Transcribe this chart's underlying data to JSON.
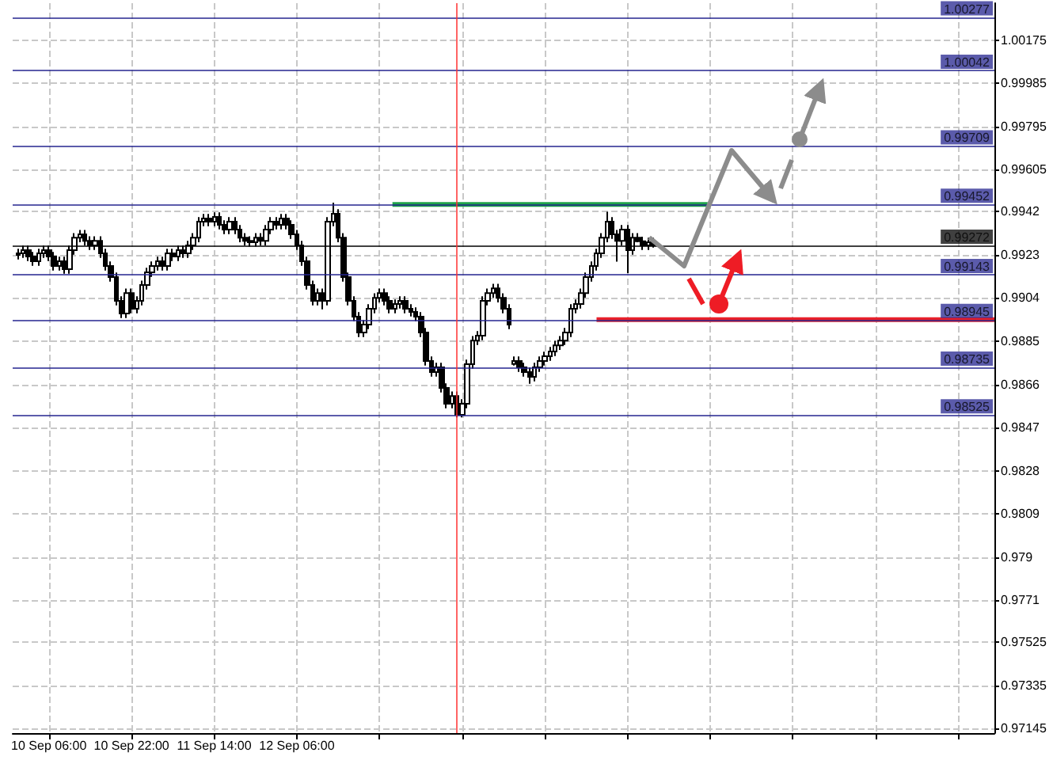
{
  "chart_data": {
    "type": "candlestick",
    "grid": true,
    "xlim": [
      "--09-09T23:00",
      "--09-17T21:00"
    ],
    "xticks": [
      {
        "value": "--09-10T06:00",
        "label": "10 Sep 06:00"
      },
      {
        "value": "--09-10T22:00",
        "label": "10 Sep 22:00"
      },
      {
        "value": "--09-11T14:00",
        "label": "11 Sep 14:00"
      },
      {
        "value": "--09-12T06:00",
        "label": "12 Sep 06:00"
      },
      {
        "value": "--09-12T22:00",
        "label": null
      },
      {
        "value": "--09-13T14:00",
        "label": null
      },
      {
        "value": "--09-14T06:00",
        "label": null
      },
      {
        "value": "--09-14T22:00",
        "label": null
      },
      {
        "value": "--09-15T14:00",
        "label": null
      },
      {
        "value": "--09-16T06:00",
        "label": null
      },
      {
        "value": "--09-16T22:00",
        "label": null
      },
      {
        "value": "--09-17T14:00",
        "label": null
      }
    ],
    "ylim": [
      0.97125,
      1.00338
    ],
    "yticks": [
      0.97145,
      0.97335,
      0.97525,
      0.9771,
      0.979,
      0.9809,
      0.9828,
      0.9847,
      0.9866,
      0.9885,
      0.9904,
      0.9923,
      0.9942,
      0.99605,
      0.99795,
      0.99985,
      1.00175
    ],
    "series": [
      {
        "color": "#000000",
        "x": [
          "--09-10T00:00",
          "--09-10T01:00",
          "--09-10T02:00",
          "--09-10T03:00",
          "--09-10T04:00",
          "--09-10T05:00",
          "--09-10T06:00",
          "--09-10T07:00",
          "--09-10T08:00",
          "--09-10T09:00",
          "--09-10T10:00",
          "--09-10T11:00",
          "--09-10T12:00",
          "--09-10T13:00",
          "--09-10T14:00",
          "--09-10T15:00",
          "--09-10T16:00",
          "--09-10T17:00",
          "--09-10T18:00",
          "--09-10T19:00",
          "--09-10T20:00",
          "--09-10T21:00",
          "--09-10T22:00",
          "--09-10T23:00",
          "--09-11T00:00",
          "--09-11T01:00",
          "--09-11T02:00",
          "--09-11T03:00",
          "--09-11T04:00",
          "--09-11T05:00",
          "--09-11T06:00",
          "--09-11T07:00",
          "--09-11T08:00",
          "--09-11T09:00",
          "--09-11T10:00",
          "--09-11T11:00",
          "--09-11T12:00",
          "--09-11T13:00",
          "--09-11T14:00",
          "--09-11T15:00",
          "--09-11T16:00",
          "--09-11T17:00",
          "--09-11T18:00",
          "--09-11T19:00",
          "--09-11T20:00",
          "--09-11T21:00",
          "--09-11T22:00",
          "--09-11T23:00",
          "--09-12T00:00",
          "--09-12T01:00",
          "--09-12T02:00",
          "--09-12T03:00",
          "--09-12T04:00",
          "--09-12T05:00",
          "--09-12T06:00",
          "--09-12T07:00",
          "--09-12T08:00",
          "--09-12T09:00",
          "--09-12T10:00",
          "--09-12T11:00",
          "--09-12T12:00",
          "--09-12T13:00",
          "--09-12T14:00",
          "--09-12T15:00",
          "--09-12T16:00",
          "--09-12T17:00",
          "--09-12T18:00",
          "--09-12T19:00",
          "--09-12T20:00",
          "--09-12T21:00",
          "--09-12T22:00",
          "--09-12T23:00",
          "--09-13T00:00",
          "--09-13T01:00",
          "--09-13T02:00",
          "--09-13T03:00",
          "--09-13T04:00",
          "--09-13T05:00",
          "--09-13T06:00",
          "--09-13T07:00",
          "--09-13T08:00",
          "--09-13T09:00",
          "--09-13T10:00",
          "--09-13T11:00",
          "--09-13T12:00",
          "--09-13T13:00",
          "--09-13T14:00",
          "--09-13T15:00",
          "--09-13T16:00",
          "--09-13T17:00",
          "--09-13T18:00",
          "--09-13T19:00",
          "--09-13T20:00",
          "--09-13T21:00",
          "--09-13T22:00",
          "--09-13T23:00",
          "--09-14T00:00",
          "--09-14T01:00",
          "--09-14T02:00",
          "--09-14T03:00",
          "--09-14T04:00",
          "--09-14T05:00",
          "--09-14T06:00",
          "--09-14T07:00",
          "--09-14T08:00",
          "--09-14T09:00",
          "--09-14T10:00",
          "--09-14T11:00",
          "--09-14T12:00",
          "--09-14T13:00",
          "--09-14T14:00",
          "--09-14T15:00",
          "--09-14T16:00",
          "--09-14T17:00",
          "--09-14T18:00",
          "--09-14T19:00",
          "--09-14T20:00",
          "--09-14T21:00",
          "--09-14T22:00",
          "--09-14T23:00",
          "--09-15T00:00",
          "--09-15T01:00",
          "--09-15T02:00",
          "--09-15T03:00"
        ],
        "ohlc": [
          [
            0.9923,
            0.99257,
            0.9921,
            0.99237
          ],
          [
            0.99237,
            0.99271,
            0.99217,
            0.99251
          ],
          [
            0.99251,
            0.99271,
            0.99203,
            0.99223
          ],
          [
            0.99223,
            0.99243,
            0.99182,
            0.99202
          ],
          [
            0.99202,
            0.99257,
            0.99182,
            0.99237
          ],
          [
            0.99237,
            0.99271,
            0.99217,
            0.99251
          ],
          [
            0.99251,
            0.99271,
            0.99203,
            0.99223
          ],
          [
            0.99223,
            0.99243,
            0.99161,
            0.99181
          ],
          [
            0.99181,
            0.99222,
            0.99161,
            0.99202
          ],
          [
            0.99202,
            0.99222,
            0.99147,
            0.99167
          ],
          [
            0.99167,
            0.99271,
            0.99147,
            0.99251
          ],
          [
            0.99251,
            0.99326,
            0.99231,
            0.99306
          ],
          [
            0.99306,
            0.9934,
            0.99286,
            0.9932
          ],
          [
            0.9932,
            0.9934,
            0.99272,
            0.99292
          ],
          [
            0.99292,
            0.99312,
            0.99252,
            0.99272
          ],
          [
            0.99272,
            0.99312,
            0.99252,
            0.99292
          ],
          [
            0.99292,
            0.99312,
            0.99217,
            0.99237
          ],
          [
            0.99237,
            0.99257,
            0.99161,
            0.99181
          ],
          [
            0.99181,
            0.99201,
            0.99112,
            0.99132
          ],
          [
            0.99132,
            0.99152,
            0.99008,
            0.99028
          ],
          [
            0.99028,
            0.99048,
            0.98952,
            0.98972
          ],
          [
            0.98972,
            0.99082,
            0.98952,
            0.99062
          ],
          [
            0.99062,
            0.99082,
            0.98973,
            0.98993
          ],
          [
            0.98993,
            0.99048,
            0.98973,
            0.99028
          ],
          [
            0.99028,
            0.99117,
            0.99008,
            0.99097
          ],
          [
            0.99097,
            0.99173,
            0.99077,
            0.99153
          ],
          [
            0.99153,
            0.99201,
            0.99133,
            0.99181
          ],
          [
            0.99181,
            0.99222,
            0.99161,
            0.99202
          ],
          [
            0.99202,
            0.99222,
            0.99161,
            0.99181
          ],
          [
            0.99181,
            0.99257,
            0.99161,
            0.99237
          ],
          [
            0.99237,
            0.99257,
            0.99203,
            0.99223
          ],
          [
            0.99223,
            0.99271,
            0.99203,
            0.99251
          ],
          [
            0.99251,
            0.99271,
            0.99217,
            0.99237
          ],
          [
            0.99237,
            0.99292,
            0.99217,
            0.99272
          ],
          [
            0.99272,
            0.99326,
            0.99252,
            0.99306
          ],
          [
            0.99306,
            0.99396,
            0.99286,
            0.99376
          ],
          [
            0.99376,
            0.9941,
            0.99356,
            0.9939
          ],
          [
            0.9939,
            0.9941,
            0.99356,
            0.99376
          ],
          [
            0.99376,
            0.99417,
            0.99356,
            0.99397
          ],
          [
            0.99397,
            0.99417,
            0.99342,
            0.99362
          ],
          [
            0.99362,
            0.99382,
            0.99321,
            0.99341
          ],
          [
            0.99341,
            0.99396,
            0.99321,
            0.99376
          ],
          [
            0.99376,
            0.99396,
            0.99321,
            0.99341
          ],
          [
            0.99341,
            0.99361,
            0.99286,
            0.99306
          ],
          [
            0.99306,
            0.99326,
            0.99272,
            0.99292
          ],
          [
            0.99292,
            0.99312,
            0.99266,
            0.99286
          ],
          [
            0.99286,
            0.99326,
            0.99266,
            0.99306
          ],
          [
            0.99306,
            0.99326,
            0.99272,
            0.99292
          ],
          [
            0.99292,
            0.99361,
            0.99272,
            0.99341
          ],
          [
            0.99341,
            0.99396,
            0.99321,
            0.99376
          ],
          [
            0.99376,
            0.99396,
            0.99342,
            0.99362
          ],
          [
            0.99362,
            0.9941,
            0.99342,
            0.9939
          ],
          [
            0.9939,
            0.9941,
            0.99342,
            0.99362
          ],
          [
            0.99362,
            0.99382,
            0.993,
            0.9932
          ],
          [
            0.9932,
            0.9934,
            0.99252,
            0.99272
          ],
          [
            0.99272,
            0.99292,
            0.99182,
            0.99202
          ],
          [
            0.99202,
            0.99222,
            0.99077,
            0.99097
          ],
          [
            0.99097,
            0.99117,
            0.99008,
            0.99028
          ],
          [
            0.99028,
            0.99082,
            0.99008,
            0.99062
          ],
          [
            0.99062,
            0.99082,
            0.9899,
            0.99028
          ],
          [
            0.99028,
            0.99396,
            0.99008,
            0.99376
          ],
          [
            0.99376,
            0.9946,
            0.99356,
            0.99411
          ],
          [
            0.99411,
            0.99431,
            0.99286,
            0.99306
          ],
          [
            0.99306,
            0.99326,
            0.99112,
            0.99132
          ],
          [
            0.99132,
            0.99152,
            0.99008,
            0.99028
          ],
          [
            0.99028,
            0.99048,
            0.98938,
            0.98958
          ],
          [
            0.98958,
            0.98978,
            0.98868,
            0.98888
          ],
          [
            0.98888,
            0.98943,
            0.98868,
            0.98923
          ],
          [
            0.98923,
            0.99013,
            0.98903,
            0.98993
          ],
          [
            0.98993,
            0.99061,
            0.98973,
            0.99041
          ],
          [
            0.99041,
            0.99082,
            0.99021,
            0.99062
          ],
          [
            0.99062,
            0.99082,
            0.99008,
            0.99028
          ],
          [
            0.99028,
            0.99048,
            0.98973,
            0.98993
          ],
          [
            0.98993,
            0.99034,
            0.98973,
            0.99014
          ],
          [
            0.99014,
            0.99048,
            0.98994,
            0.99028
          ],
          [
            0.99028,
            0.99048,
            0.98973,
            0.98993
          ],
          [
            0.98993,
            0.99013,
            0.98959,
            0.98979
          ],
          [
            0.98979,
            0.98999,
            0.98938,
            0.98958
          ],
          [
            0.98958,
            0.98978,
            0.98868,
            0.98888
          ],
          [
            0.98888,
            0.98908,
            0.98743,
            0.98763
          ],
          [
            0.98763,
            0.98783,
            0.98694,
            0.98714
          ],
          [
            0.98714,
            0.98755,
            0.98694,
            0.98735
          ],
          [
            0.98735,
            0.98755,
            0.98624,
            0.98644
          ],
          [
            0.98644,
            0.98664,
            0.98555,
            0.98575
          ],
          [
            0.98575,
            0.98629,
            0.98555,
            0.98609
          ],
          [
            0.98609,
            0.98629,
            0.98515,
            0.98526
          ],
          [
            0.98526,
            0.98595,
            0.98515,
            0.98575
          ],
          [
            0.98575,
            0.98769,
            0.98555,
            0.98749
          ],
          [
            0.98749,
            0.98873,
            0.98729,
            0.98853
          ],
          [
            0.98853,
            0.98894,
            0.98833,
            0.98874
          ],
          [
            0.98874,
            0.99048,
            0.98854,
            0.99028
          ],
          [
            0.99028,
            0.99082,
            0.99008,
            0.99062
          ],
          [
            0.99062,
            0.99103,
            0.99042,
            0.99083
          ],
          [
            0.99083,
            0.99103,
            0.99021,
            0.99041
          ],
          [
            0.99041,
            0.99061,
            0.98973,
            0.98993
          ],
          [
            0.98993,
            0.99013,
            0.98903,
            0.98923
          ],
          [
            0.9875,
            0.98783,
            0.98743,
            0.98763
          ],
          [
            0.98763,
            0.98783,
            0.98715,
            0.98735
          ],
          [
            0.98735,
            0.98755,
            0.98694,
            0.98714
          ],
          [
            0.98714,
            0.98734,
            0.98663,
            0.98693
          ],
          [
            0.98693,
            0.98755,
            0.98673,
            0.98735
          ],
          [
            0.98735,
            0.98783,
            0.98715,
            0.98763
          ],
          [
            0.98763,
            0.98804,
            0.98743,
            0.98784
          ],
          [
            0.98784,
            0.98825,
            0.98764,
            0.98805
          ],
          [
            0.98805,
            0.98852,
            0.98785,
            0.98832
          ],
          [
            0.98832,
            0.98873,
            0.98812,
            0.98853
          ],
          [
            0.98853,
            0.98908,
            0.98833,
            0.98888
          ],
          [
            0.98888,
            0.99013,
            0.98868,
            0.98993
          ],
          [
            0.98993,
            0.99034,
            0.98973,
            0.99014
          ],
          [
            0.99014,
            0.99082,
            0.98994,
            0.99062
          ],
          [
            0.99062,
            0.99152,
            0.99042,
            0.99132
          ],
          [
            0.99132,
            0.99201,
            0.99112,
            0.99181
          ],
          [
            0.99181,
            0.99257,
            0.99161,
            0.99237
          ],
          [
            0.99237,
            0.99326,
            0.99217,
            0.99306
          ],
          [
            0.99306,
            0.9942,
            0.99286,
            0.99376
          ],
          [
            0.99376,
            0.99396,
            0.993,
            0.9932
          ],
          [
            0.9932,
            0.9934,
            0.992,
            0.99292
          ],
          [
            0.99292,
            0.99361,
            0.99272,
            0.99341
          ],
          [
            0.99341,
            0.99361,
            0.9915,
            0.99251
          ],
          [
            0.99251,
            0.99326,
            0.99231,
            0.99306
          ],
          [
            0.99306,
            0.99326,
            0.99286,
            0.9929
          ],
          [
            0.9929,
            0.9931,
            0.99252,
            0.99272
          ],
          [
            0.99272,
            0.99306,
            0.99252,
            0.99286
          ],
          [
            0.99286,
            0.99306,
            0.99262,
            0.99272
          ]
        ]
      },
      {
        "type": "line",
        "color": "#1fa34a",
        "x": [
          "--09-13T00:30",
          "--09-15T13:30"
        ],
        "values": [
          0.99452,
          0.99452
        ]
      },
      {
        "type": "line",
        "color": "#e8202a",
        "x": [
          "--09-14T16:00",
          "--09-17T21:00"
        ],
        "values": [
          0.98945,
          0.98945
        ]
      }
    ],
    "ref_lines": [
      {
        "axis": "y",
        "value": 1.00277,
        "label": "1.00277",
        "color": "#24248f"
      },
      {
        "axis": "y",
        "value": 1.00042,
        "label": "1.00042",
        "color": "#24248f"
      },
      {
        "axis": "y",
        "value": 0.99709,
        "label": "0.99709",
        "color": "#24248f"
      },
      {
        "axis": "y",
        "value": 0.99452,
        "label": "0.99452",
        "color": "#24248f"
      },
      {
        "axis": "y",
        "value": 0.99272,
        "label": "0.99272",
        "color": "#000000"
      },
      {
        "axis": "y",
        "value": 0.99143,
        "label": "0.99143",
        "color": "#24248f"
      },
      {
        "axis": "y",
        "value": 0.98945,
        "label": "0.98945",
        "color": "#24248f"
      },
      {
        "axis": "y",
        "value": 0.98735,
        "label": "0.98735",
        "color": "#24248f"
      },
      {
        "axis": "y",
        "value": 0.98525,
        "label": "0.98525",
        "color": "#24248f"
      },
      {
        "axis": "x",
        "value": "--09-13T13:00",
        "color": "#ff3030"
      }
    ]
  }
}
